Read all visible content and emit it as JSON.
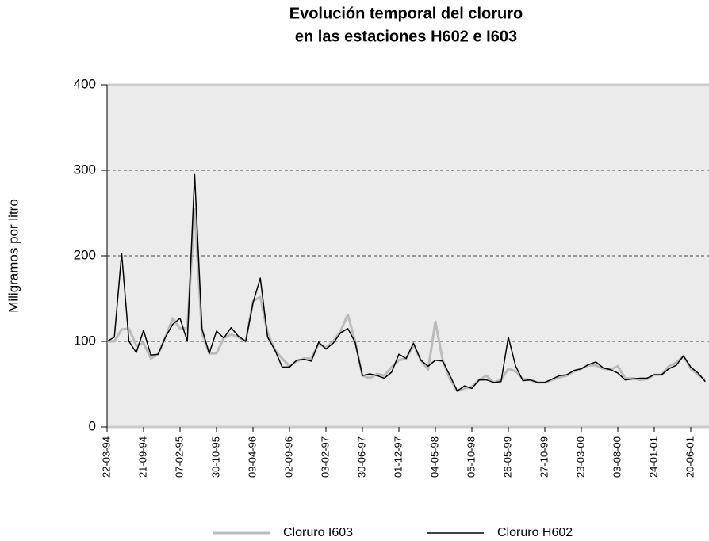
{
  "chart_data": {
    "type": "line",
    "title": [
      "Evolución temporal del cloruro",
      "en las estaciones H602 e I603"
    ],
    "ylabel": "Miligramos por litro",
    "ylim": [
      0,
      400
    ],
    "yticks": [
      0,
      100,
      200,
      300,
      400
    ],
    "grid": true,
    "legend": "bottom",
    "categories": [
      "22-03-94",
      null,
      null,
      null,
      null,
      "21-09-94",
      null,
      null,
      null,
      null,
      "07-02-95",
      null,
      null,
      null,
      null,
      "30-10-95",
      null,
      null,
      null,
      null,
      "09-04-96",
      null,
      null,
      null,
      null,
      "02-09-96",
      null,
      null,
      null,
      null,
      "03-02-97",
      null,
      null,
      null,
      null,
      "30-06-97",
      null,
      null,
      null,
      null,
      "01-12-97",
      null,
      null,
      null,
      null,
      "04-05-98",
      null,
      null,
      null,
      null,
      "05-10-98",
      null,
      null,
      null,
      null,
      "26-05-99",
      null,
      null,
      null,
      null,
      "27-10-99",
      null,
      null,
      null,
      null,
      "23-03-00",
      null,
      null,
      null,
      null,
      "03-08-00",
      null,
      null,
      null,
      null,
      "24-01-01",
      null,
      null,
      null,
      null,
      "20-06-01",
      null,
      null
    ],
    "series": [
      {
        "name": "Cloruro I603",
        "color": "#bbbbbb",
        "values": [
          100,
          100,
          114,
          115,
          95,
          98,
          80,
          85,
          105,
          127,
          115,
          115,
          255,
          110,
          86,
          86,
          104,
          108,
          105,
          100,
          147,
          152,
          110,
          90,
          80,
          71,
          77,
          80,
          80,
          97,
          93,
          100,
          112,
          131,
          100,
          60,
          57,
          62,
          60,
          70,
          78,
          80,
          96,
          78,
          67,
          123,
          78,
          56,
          42,
          45,
          47,
          55,
          60,
          52,
          55,
          68,
          65,
          56,
          55,
          52,
          52,
          55,
          58,
          60,
          65,
          68,
          72,
          72,
          68,
          67,
          71,
          57,
          57,
          55,
          56,
          61,
          61,
          71,
          75,
          83,
          68,
          61,
          55
        ]
      },
      {
        "name": "Cloruro H602",
        "color": "#000000",
        "values": [
          100,
          105,
          203,
          100,
          87,
          113,
          84,
          85,
          105,
          120,
          127,
          100,
          295,
          115,
          86,
          112,
          104,
          116,
          106,
          100,
          145,
          174,
          105,
          90,
          70,
          70,
          78,
          79,
          77,
          99,
          91,
          98,
          110,
          115,
          99,
          60,
          62,
          60,
          57,
          64,
          85,
          80,
          98,
          78,
          71,
          78,
          77,
          60,
          42,
          48,
          45,
          55,
          55,
          52,
          53,
          105,
          71,
          54,
          55,
          52,
          52,
          56,
          60,
          61,
          66,
          68,
          73,
          76,
          69,
          67,
          63,
          55,
          56,
          57,
          57,
          61,
          61,
          68,
          72,
          83,
          70,
          63,
          53
        ]
      }
    ]
  }
}
